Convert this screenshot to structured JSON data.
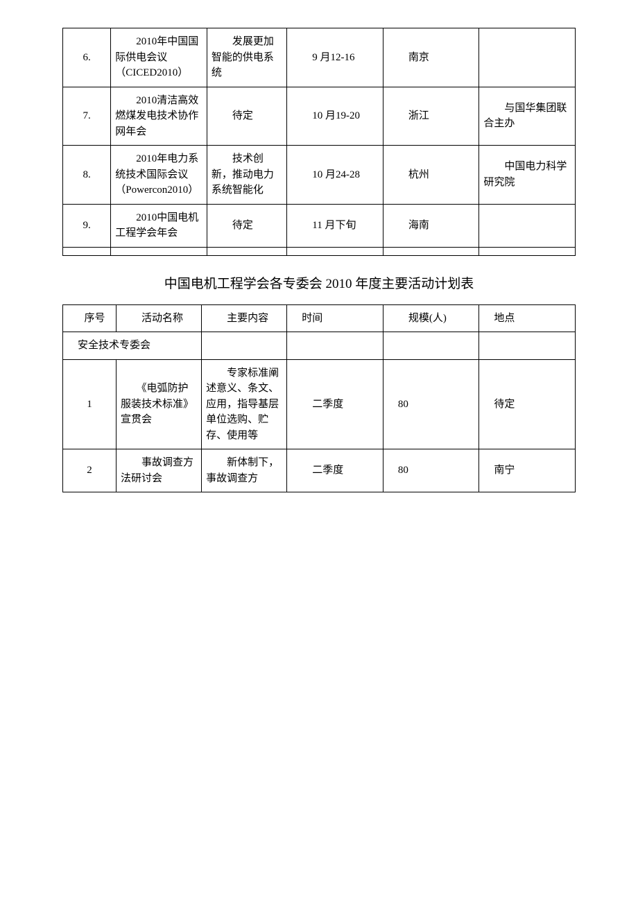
{
  "table1": {
    "rows": [
      {
        "num": "6.",
        "name": "　　2010年中国国际供电会议（CICED2010）",
        "content": "　　发展更加智能的供电系统",
        "time": "　　9 月12-16",
        "loc": "　　南京",
        "note": ""
      },
      {
        "num": "7.",
        "name": "　　2010清洁高效燃煤发电技术协作网年会",
        "content": "　　待定",
        "time": "　　10 月19-20",
        "loc": "　　浙江",
        "note": "　　与国华集团联合主办"
      },
      {
        "num": "8.",
        "name": "　　2010年电力系统技术国际会议\n（Powercon2010）",
        "content": "　　技术创新，推动电力系统智能化",
        "time": "　　10 月24-28",
        "loc": "　　杭州",
        "note": "　　中国电力科学研究院"
      },
      {
        "num": "9.",
        "name": "　　2010中国电机工程学会年会",
        "content": "　　待定",
        "time": "　　11 月下旬",
        "loc": "　　海南",
        "note": ""
      }
    ]
  },
  "section_title": "中国电机工程学会各专委会 2010 年度主要活动计划表",
  "table2": {
    "headers": {
      "num": "　序号",
      "name": "　　活动名称",
      "content": "　　主要内容",
      "time": "　时间",
      "scale": "　　规模(人)",
      "loc": "　地点"
    },
    "section_row": "　安全技术专委会",
    "rows": [
      {
        "num": "1",
        "name": "　　《电弧防护服装技术标准》宣贯会",
        "content": "　　专家标准阐述意义、条文、应用，指导基层单位选购、贮存、使用等",
        "time": "　　二季度",
        "scale": "　80",
        "loc": "　待定"
      },
      {
        "num": "2",
        "name": "　　事故调查方法研讨会",
        "content": "　　新体制下，事故调查方",
        "time": "　　二季度",
        "scale": "　80",
        "loc": "　南宁"
      }
    ]
  }
}
